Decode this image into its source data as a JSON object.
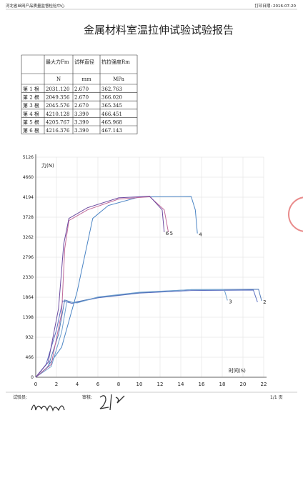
{
  "header": {
    "org": "河北省丝网产品质量监督检验中心",
    "print_date": "打印日期: 2016-07-20"
  },
  "title": "金属材料室温拉伸试验试验报告",
  "table": {
    "columns": [
      {
        "name": "最大力Fm",
        "unit": "N"
      },
      {
        "name": "试样直径",
        "unit": "mm"
      },
      {
        "name": "抗拉强度Rm",
        "unit": "MPa"
      }
    ],
    "rows": [
      {
        "label": "第 1 根",
        "values": [
          "2031.120",
          "2.670",
          "362.763"
        ]
      },
      {
        "label": "第 2 根",
        "values": [
          "2049.356",
          "2.670",
          "366.020"
        ]
      },
      {
        "label": "第 3 根",
        "values": [
          "2045.576",
          "2.670",
          "365.345"
        ]
      },
      {
        "label": "第 4 根",
        "values": [
          "4210.128",
          "3.390",
          "466.451"
        ]
      },
      {
        "label": "第 5 根",
        "values": [
          "4205.767",
          "3.390",
          "465.968"
        ]
      },
      {
        "label": "第 6 根",
        "values": [
          "4216.376",
          "3.390",
          "467.143"
        ]
      }
    ]
  },
  "chart": {
    "y_label": "力(N)",
    "x_label": "时间(S)",
    "xlim": [
      0,
      22
    ],
    "ylim": [
      0,
      5126
    ],
    "xticks": [
      0,
      2,
      4,
      6,
      8,
      10,
      12,
      14,
      16,
      18,
      20,
      22
    ],
    "yticks": [
      0,
      466,
      932,
      1398,
      1864,
      2330,
      2796,
      3262,
      3728,
      4194,
      4660,
      5126
    ],
    "series": [
      {
        "color": "#5a6fc0",
        "x": [
          0,
          1,
          2,
          2.6,
          3.5,
          6,
          10,
          15,
          21,
          21.4
        ],
        "values": [
          0,
          300,
          1100,
          1780,
          1720,
          1850,
          1960,
          2020,
          2031,
          1750
        ]
      },
      {
        "label": "2",
        "color": "#4f79b8",
        "x": [
          0,
          1.2,
          2.2,
          2.8,
          3.6,
          6,
          10,
          15,
          21.5,
          21.8
        ],
        "values": [
          0,
          250,
          1000,
          1800,
          1740,
          1860,
          1970,
          2040,
          2049,
          1780
        ]
      },
      {
        "label": "3",
        "color": "#6fa0cf",
        "x": [
          0,
          1.5,
          2.5,
          3,
          4,
          6,
          10,
          15,
          18.2,
          18.5
        ],
        "values": [
          0,
          250,
          1050,
          1760,
          1730,
          1870,
          1980,
          2040,
          2045,
          1790
        ]
      },
      {
        "label": "4",
        "color": "#4a84c4",
        "x": [
          0,
          1,
          2.5,
          4,
          5.5,
          7,
          10,
          15,
          15.4,
          15.6
        ],
        "values": [
          0,
          200,
          700,
          2000,
          3700,
          4000,
          4200,
          4210,
          3900,
          3350
        ]
      },
      {
        "label": "5",
        "color": "#c06a9a",
        "x": [
          0,
          1.5,
          2.5,
          2.8,
          3.2,
          5,
          8,
          11,
          12.4,
          12.8
        ],
        "values": [
          0,
          300,
          1500,
          3000,
          3650,
          3900,
          4150,
          4205,
          3900,
          3380
        ]
      },
      {
        "label": "6",
        "color": "#6b4aa0",
        "x": [
          0,
          1.2,
          2.2,
          2.7,
          3.2,
          5,
          8,
          11,
          12.2,
          12.4
        ],
        "values": [
          0,
          350,
          1600,
          3100,
          3700,
          3950,
          4180,
          4216,
          3900,
          3380
        ]
      }
    ]
  },
  "footer": {
    "tester": "试验员:",
    "reviewer": "审核:",
    "page": "1/1 页"
  }
}
